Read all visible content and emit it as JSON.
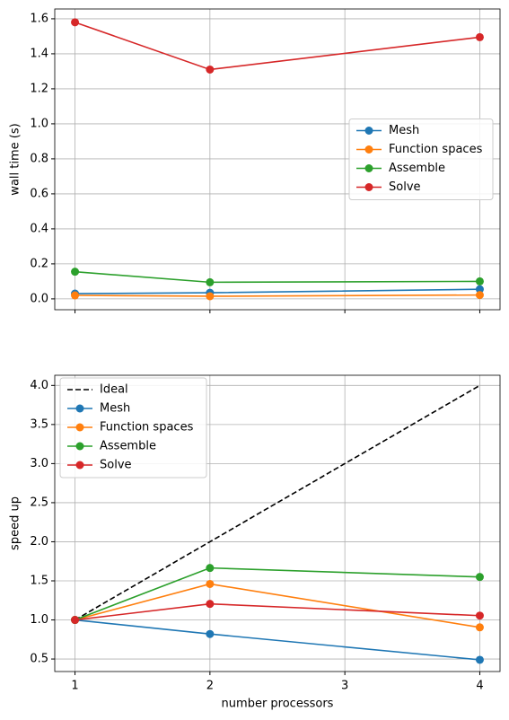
{
  "chart_data": [
    {
      "type": "line",
      "ylabel": "wall time (s)",
      "x": [
        1,
        2,
        4
      ],
      "xlim": [
        0.85,
        4.15
      ],
      "xticks": [
        1,
        2,
        3,
        4
      ],
      "ylim": [
        -0.062,
        1.656
      ],
      "yticks": [
        {
          "value": 0,
          "label": "0.0"
        },
        0.2,
        0.4,
        0.6,
        0.8,
        {
          "value": 1,
          "label": "1.0"
        },
        1.2,
        1.4,
        1.6
      ],
      "grid": true,
      "legend": "center right",
      "series": [
        {
          "name": "Mesh",
          "color": "#1f77b4",
          "values": [
            0.03,
            0.035,
            0.055
          ]
        },
        {
          "name": "Function spaces",
          "color": "#ff7f0e",
          "values": [
            0.02,
            0.015,
            0.022
          ]
        },
        {
          "name": "Assemble",
          "color": "#2ca02c",
          "values": [
            0.155,
            0.095,
            0.1
          ]
        },
        {
          "name": "Solve",
          "color": "#d62728",
          "values": [
            1.58,
            1.31,
            1.495
          ]
        }
      ]
    },
    {
      "type": "line",
      "ylabel": "speed up",
      "xlabel": "number processors",
      "x": [
        1,
        2,
        4
      ],
      "xlim": [
        0.85,
        4.15
      ],
      "xticks": [
        1,
        2,
        3,
        4
      ],
      "ylim": [
        0.34,
        4.13
      ],
      "yticks": [
        0.5,
        {
          "value": 1,
          "label": "1.0"
        },
        1.5,
        {
          "value": 2,
          "label": "2.0"
        },
        2.5,
        {
          "value": 3,
          "label": "3.0"
        },
        3.5,
        {
          "value": 4,
          "label": "4.0"
        }
      ],
      "grid": true,
      "legend": "upper left",
      "series": [
        {
          "name": "Ideal",
          "color": "#000000",
          "dashed": true,
          "values": [
            1,
            2,
            4
          ]
        },
        {
          "name": "Mesh",
          "color": "#1f77b4",
          "values": [
            1,
            0.82,
            0.49
          ]
        },
        {
          "name": "Function spaces",
          "color": "#ff7f0e",
          "values": [
            1,
            1.46,
            0.905
          ]
        },
        {
          "name": "Assemble",
          "color": "#2ca02c",
          "values": [
            1,
            1.665,
            1.55
          ]
        },
        {
          "name": "Solve",
          "color": "#d62728",
          "values": [
            1,
            1.205,
            1.055
          ]
        }
      ]
    }
  ]
}
